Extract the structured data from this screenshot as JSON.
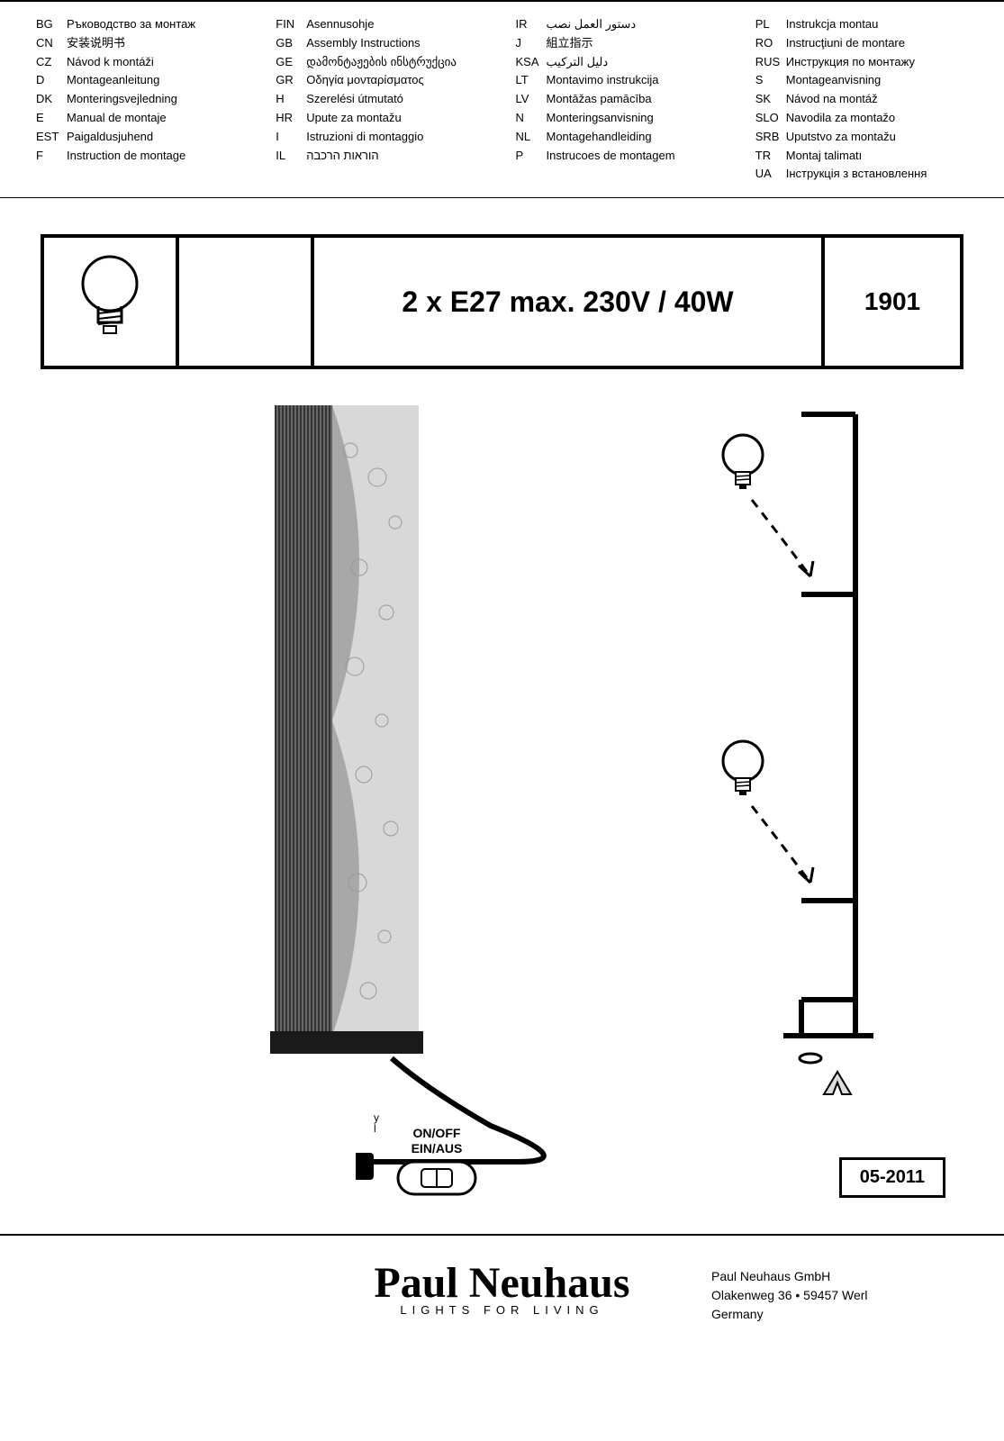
{
  "languages": {
    "col1": [
      {
        "code": "BG",
        "text": "Ръководство за монтаж"
      },
      {
        "code": "CN",
        "text": "安装说明书"
      },
      {
        "code": "CZ",
        "text": "Návod k montáži"
      },
      {
        "code": "D",
        "text": "Montageanleitung"
      },
      {
        "code": "DK",
        "text": "Monteringsvejledning"
      },
      {
        "code": "E",
        "text": "Manual de montaje"
      },
      {
        "code": "EST",
        "text": "Paigaldusjuhend"
      },
      {
        "code": "F",
        "text": "Instruction de montage"
      }
    ],
    "col2": [
      {
        "code": "FIN",
        "text": "Asennusohje"
      },
      {
        "code": "GB",
        "text": "Assembly Instructions"
      },
      {
        "code": "GE",
        "text": "დამონტაჟების ინსტრუქცია"
      },
      {
        "code": "GR",
        "text": "Οδηγία μονταρίσματος"
      },
      {
        "code": "H",
        "text": "Szerelési útmutató"
      },
      {
        "code": "HR",
        "text": "Upute za montažu"
      },
      {
        "code": "I",
        "text": "Istruzioni di montaggio"
      },
      {
        "code": "IL",
        "text": "הוראות הרכבה"
      }
    ],
    "col3": [
      {
        "code": "IR",
        "text": "دستور العمل نصب"
      },
      {
        "code": "J",
        "text": "組立指示"
      },
      {
        "code": "KSA",
        "text": "دليل التركيب"
      },
      {
        "code": "LT",
        "text": "Montavimo instrukcija"
      },
      {
        "code": "LV",
        "text": "Montāžas pamācība"
      },
      {
        "code": "N",
        "text": "Monteringsanvisning"
      },
      {
        "code": "NL",
        "text": "Montagehandleiding"
      },
      {
        "code": "P",
        "text": "Instrucoes de montagem"
      }
    ],
    "col4": [
      {
        "code": "PL",
        "text": "Instrukcja montau"
      },
      {
        "code": "RO",
        "text": "Instrucţiuni de montare"
      },
      {
        "code": "RUS",
        "text": "Инструкция по монтажу"
      },
      {
        "code": "S",
        "text": "Montageanvisning"
      },
      {
        "code": "SK",
        "text": "Návod na montáž"
      },
      {
        "code": "SLO",
        "text": "Navodila za montažo"
      },
      {
        "code": "SRB",
        "text": "Uputstvo za montažu"
      },
      {
        "code": "TR",
        "text": "Montaj talimatı"
      },
      {
        "code": "UA",
        "text": "Інструкція з встановлення"
      }
    ]
  },
  "spec": {
    "main": "2 x E27 max. 230V / 40W",
    "model": "1901"
  },
  "switch": {
    "line1": "ON/OFF",
    "line2": "EIN/AUS"
  },
  "switch_marks": {
    "y": "y",
    "l": "l"
  },
  "date": "05-2011",
  "brand": {
    "name": "Paul Neuhaus",
    "tagline": "LIGHTS FOR LIVING"
  },
  "company": {
    "name": "Paul Neuhaus GmbH",
    "address": "Olakenweg 36 • 59457 Werl",
    "country": "Germany"
  },
  "colors": {
    "border": "#000000",
    "bg": "#ffffff",
    "lamp_dark": "#333333",
    "lamp_light": "#d8d8d8"
  }
}
